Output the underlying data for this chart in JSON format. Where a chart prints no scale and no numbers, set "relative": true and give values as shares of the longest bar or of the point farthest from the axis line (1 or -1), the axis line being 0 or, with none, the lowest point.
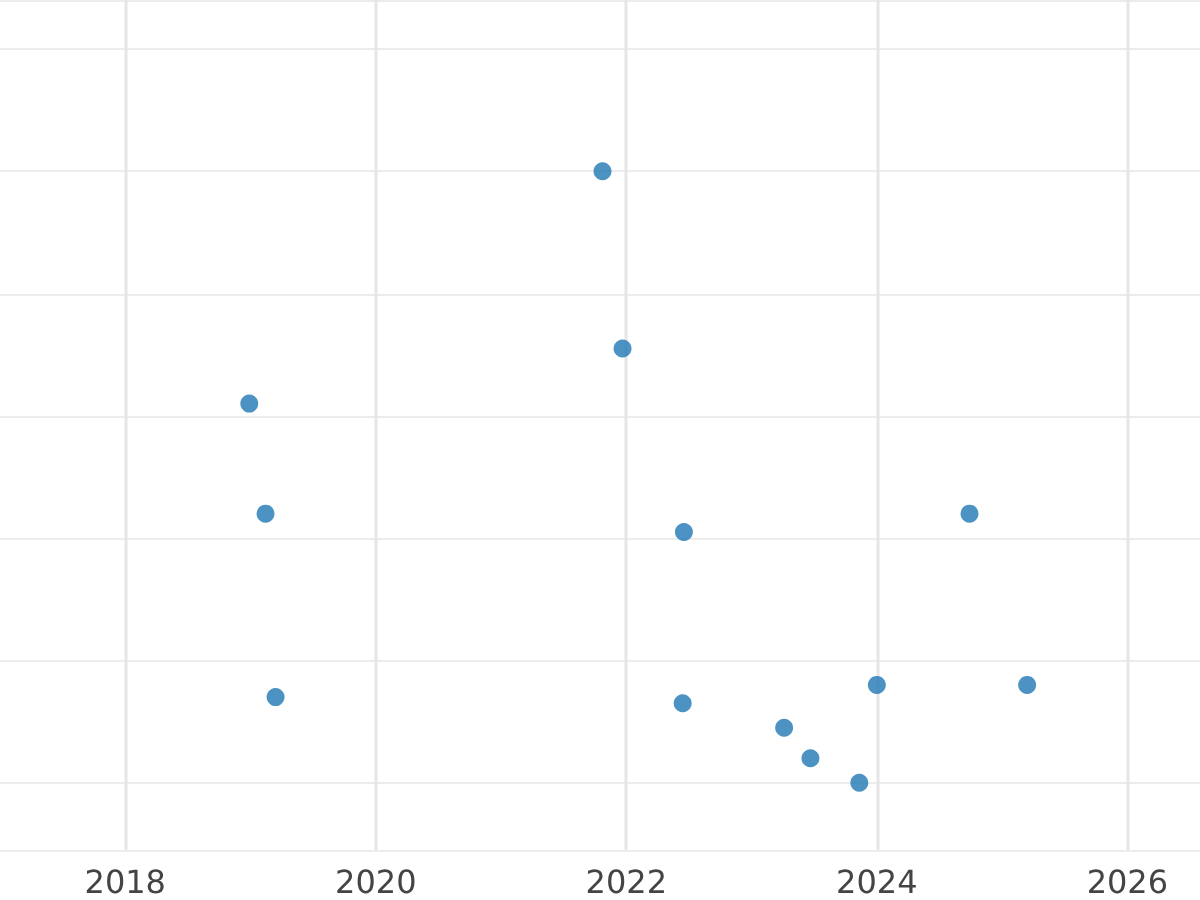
{
  "chart_data": {
    "type": "scatter",
    "relative": true,
    "x": [
      2021.81,
      2021.97,
      2018.99,
      2019.12,
      2022.46,
      2024.74,
      2019.2,
      2022.45,
      2024.0,
      2025.2,
      2023.26,
      2023.47,
      2023.86
    ],
    "values": [
      1,
      0.71,
      0.62,
      0.44,
      0.41,
      0.44,
      0.14,
      0.13,
      0.16,
      0.16,
      0.09,
      0.04,
      0
    ],
    "color": "#1f77b4",
    "marker": "circle",
    "grid": true,
    "xlim": [
      2017,
      2026.58
    ],
    "xticks": [
      2018,
      2020,
      2022,
      2024,
      2026
    ]
  }
}
